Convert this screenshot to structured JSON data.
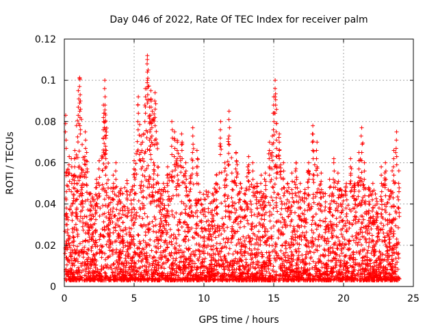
{
  "chart_data": {
    "type": "scatter",
    "title": "Day 046 of 2022, Rate Of TEC Index for receiver palm",
    "xlabel": "GPS time / hours",
    "ylabel": "ROTI / TECUs",
    "xlim": [
      0,
      25
    ],
    "ylim": [
      0,
      0.12
    ],
    "xticks": [
      0,
      5,
      10,
      15,
      20,
      25
    ],
    "yticks": [
      0,
      0.02,
      0.04,
      0.06,
      0.08,
      0.1,
      0.12
    ],
    "xtick_labels": [
      "0",
      "5",
      "10",
      "15",
      "20",
      "25"
    ],
    "ytick_labels": [
      "0",
      "0.02",
      "0.04",
      "0.06",
      "0.08",
      "0.1",
      "0.12"
    ],
    "grid": true,
    "marker": "+",
    "series_color": "#ff0000",
    "series": [
      {
        "name": "ROTI",
        "x": [
          0.1,
          0.15,
          0.2,
          0.35,
          0.5,
          0.6,
          0.75,
          0.9,
          1.0,
          1.1,
          1.15,
          1.2,
          1.3,
          1.5,
          1.6,
          1.7,
          1.9,
          2.1,
          2.3,
          2.5,
          2.8,
          2.9,
          2.95,
          3.0,
          3.2,
          3.5,
          3.7,
          4.0,
          4.2,
          4.5,
          4.8,
          5.0,
          5.3,
          5.5,
          5.6,
          5.8,
          5.95,
          6.0,
          6.1,
          6.15,
          6.2,
          6.3,
          6.4,
          6.5,
          6.7,
          6.9,
          7.1,
          7.4,
          7.7,
          7.9,
          8.1,
          8.4,
          8.7,
          9.0,
          9.2,
          9.5,
          9.8,
          10.0,
          10.3,
          10.6,
          10.9,
          11.2,
          11.5,
          11.8,
          12.0,
          12.3,
          12.6,
          12.9,
          13.2,
          13.5,
          13.8,
          14.1,
          14.4,
          14.7,
          14.9,
          15.0,
          15.1,
          15.2,
          15.4,
          15.7,
          16.0,
          16.3,
          16.6,
          16.9,
          17.2,
          17.5,
          17.8,
          18.1,
          18.4,
          18.7,
          19.0,
          19.3,
          19.6,
          19.9,
          20.2,
          20.5,
          20.8,
          21.1,
          21.3,
          21.5,
          21.8,
          22.1,
          22.4,
          22.7,
          23.0,
          23.3,
          23.6,
          23.8,
          23.95
        ],
        "y": [
          0.083,
          0.046,
          0.03,
          0.063,
          0.062,
          0.04,
          0.066,
          0.05,
          0.095,
          0.101,
          0.09,
          0.057,
          0.045,
          0.075,
          0.065,
          0.03,
          0.045,
          0.038,
          0.052,
          0.061,
          0.088,
          0.1,
          0.08,
          0.066,
          0.04,
          0.054,
          0.06,
          0.045,
          0.035,
          0.05,
          0.04,
          0.061,
          0.092,
          0.073,
          0.07,
          0.096,
          0.112,
          0.105,
          0.087,
          0.08,
          0.095,
          0.085,
          0.06,
          0.094,
          0.058,
          0.045,
          0.05,
          0.058,
          0.08,
          0.075,
          0.07,
          0.074,
          0.06,
          0.05,
          0.077,
          0.066,
          0.04,
          0.028,
          0.032,
          0.045,
          0.054,
          0.08,
          0.06,
          0.085,
          0.055,
          0.065,
          0.05,
          0.045,
          0.063,
          0.06,
          0.05,
          0.054,
          0.055,
          0.07,
          0.073,
          0.092,
          0.1,
          0.079,
          0.074,
          0.06,
          0.05,
          0.055,
          0.06,
          0.05,
          0.045,
          0.06,
          0.078,
          0.07,
          0.055,
          0.045,
          0.052,
          0.06,
          0.055,
          0.04,
          0.05,
          0.062,
          0.05,
          0.065,
          0.077,
          0.06,
          0.048,
          0.05,
          0.04,
          0.058,
          0.06,
          0.035,
          0.066,
          0.075,
          0.05
        ]
      }
    ]
  }
}
